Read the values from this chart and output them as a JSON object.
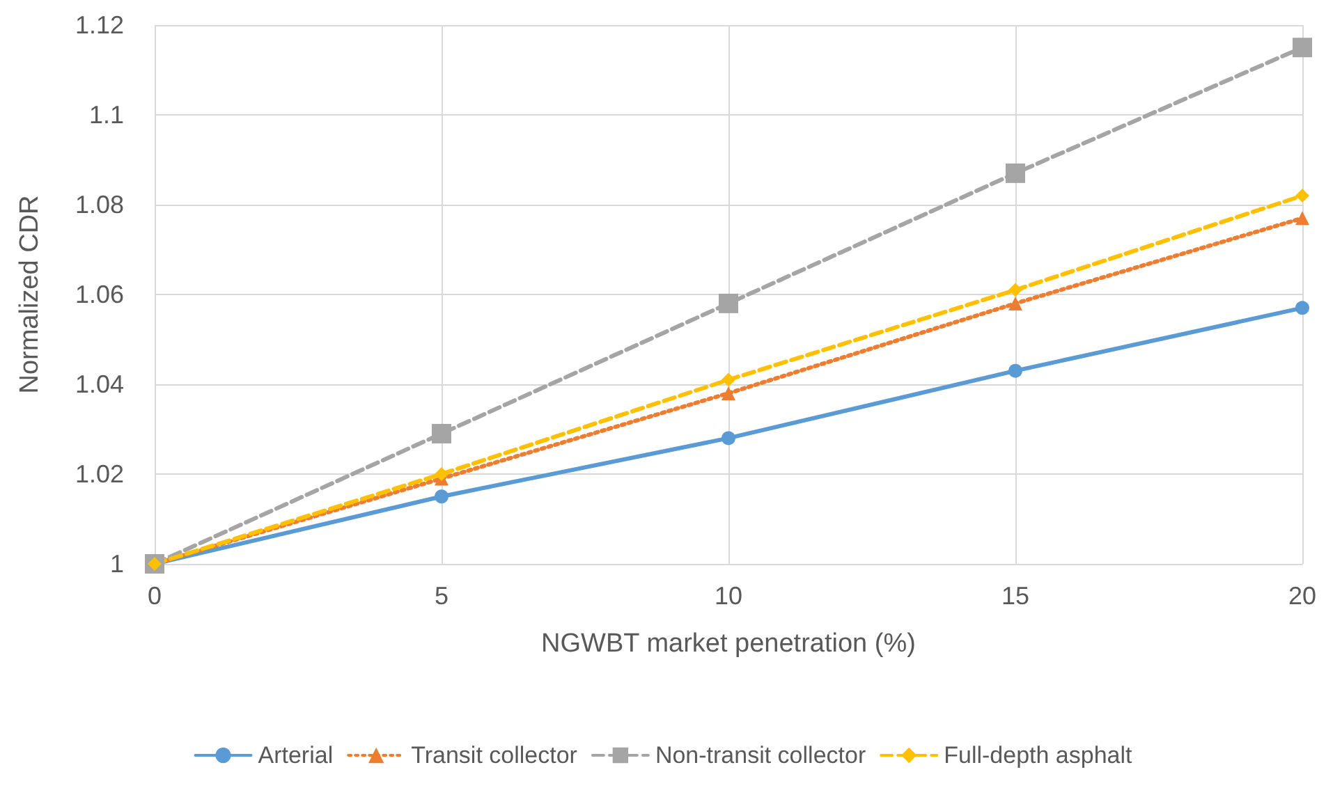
{
  "chart_data": {
    "type": "line",
    "xlabel": "NGWBT market penetration (%)",
    "ylabel": "Normalized CDR",
    "x": [
      0,
      5,
      10,
      15,
      20
    ],
    "series": [
      {
        "name": "Arterial",
        "color": "#5b9bd5",
        "marker": "circle",
        "line_style": "solid",
        "values": [
          1,
          1.015,
          1.028,
          1.043,
          1.057
        ]
      },
      {
        "name": "Transit collector",
        "color": "#ed7d31",
        "marker": "triangle",
        "line_style": "dotted",
        "values": [
          1,
          1.019,
          1.038,
          1.058,
          1.077
        ]
      },
      {
        "name": "Non-transit collector",
        "color": "#a5a5a5",
        "marker": "square",
        "line_style": "dashed",
        "values": [
          1,
          1.029,
          1.058,
          1.087,
          1.115
        ]
      },
      {
        "name": "Full-depth asphalt",
        "color": "#ffc000",
        "marker": "diamond",
        "line_style": "dashed",
        "values": [
          1,
          1.02,
          1.041,
          1.061,
          1.082
        ]
      }
    ],
    "xlim": [
      0,
      20
    ],
    "xticks": [
      0,
      5,
      10,
      15,
      20
    ],
    "ylim": [
      1,
      1.12
    ],
    "yticks": [
      1,
      1.02,
      1.04,
      1.06,
      1.08,
      1.1,
      1.12
    ],
    "grid": true,
    "legend": "bottom"
  }
}
